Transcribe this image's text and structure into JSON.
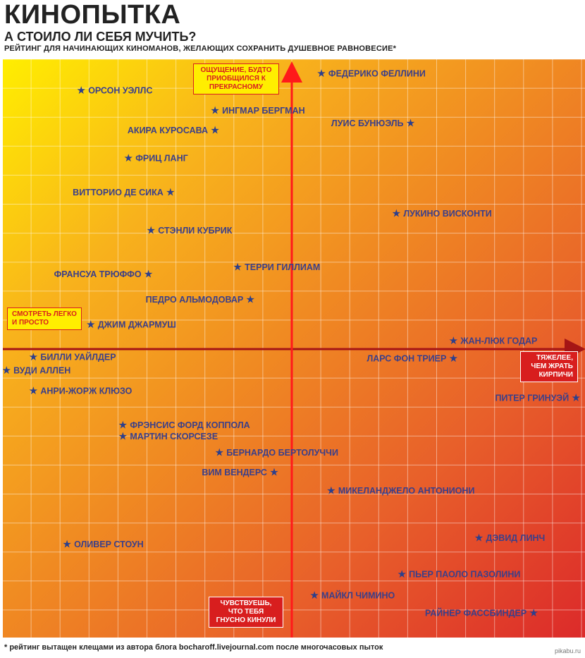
{
  "header": {
    "title": "КИНОПЫТКА",
    "subtitle": "А СТОИЛО ЛИ СЕБЯ МУЧИТЬ?",
    "description": "РЕЙТИНГ ДЛЯ НАЧИНАЮЩИХ КИНОМАНОВ, ЖЕЛАЮЩИХ СОХРАНИТЬ ДУШЕВНОЕ РАВНОВЕСИЕ*"
  },
  "footer": {
    "footnote": "* рейтинг вытащен клещами из автора блога bocharoff.livejournal.com после многочасовых пыток",
    "watermark": "pikabu.ru"
  },
  "axes": {
    "top": "ОЩУЩЕНИЕ, БУДТО ПРИОБЩИЛСЯ К ПРЕКРАСНОМУ",
    "bottom": "ЧУВСТВУЕШЬ, ЧТО ТЕБЯ ГНУСНО КИНУЛИ",
    "left": "СМОТРЕТЬ ЛЕГКО И ПРОСТО",
    "right": "ТЯЖЕЛЕЕ, ЧЕМ ЖРАТЬ КИРПИЧИ"
  },
  "colors": {
    "gradient_start": "#ffee00",
    "gradient_end": "#dc2a2a",
    "axis_x": "#a51515",
    "axis_y": "#ff1a1a",
    "label": "#3a3f8a",
    "star": "#2c3f8c"
  },
  "chart_data": {
    "type": "scatter",
    "xlim": [
      -10,
      10
    ],
    "ylim": [
      -10,
      10
    ],
    "grid": true,
    "points": [
      {
        "name": "ФЕДЕРИКО ФЕЛЛИНИ",
        "x": 1.02,
        "y": 9.51,
        "side": "right"
      },
      {
        "name": "ОРСОН УЭЛЛС",
        "x": -7.27,
        "y": 8.93,
        "side": "right"
      },
      {
        "name": "ИНГМАР БЕРГМАН",
        "x": -2.65,
        "y": 8.24,
        "side": "right"
      },
      {
        "name": "ЛУИС БУНЮЭЛЬ",
        "x": 4.1,
        "y": 7.8,
        "side": "left"
      },
      {
        "name": "АКИРА КУРОСАВА",
        "x": -2.65,
        "y": 7.56,
        "side": "left"
      },
      {
        "name": "ФРИЦ ЛАНГ",
        "x": -5.64,
        "y": 6.59,
        "side": "right"
      },
      {
        "name": "ВИТТОРИО ДЕ СИКА",
        "x": -4.19,
        "y": 5.41,
        "side": "left"
      },
      {
        "name": "ЛУКИНО ВИСКОНТИ",
        "x": 3.61,
        "y": 4.68,
        "side": "right"
      },
      {
        "name": "СТЭНЛИ КУБРИК",
        "x": -4.86,
        "y": 4.1,
        "side": "right"
      },
      {
        "name": "ТЕРРИ ГИЛЛИАМ",
        "x": -1.87,
        "y": 2.83,
        "side": "right"
      },
      {
        "name": "ФРАНСУА ТРЮФФО",
        "x": -4.95,
        "y": 2.59,
        "side": "left"
      },
      {
        "name": "ПЕДРО АЛЬМОДОВАР",
        "x": -1.43,
        "y": 1.71,
        "side": "left"
      },
      {
        "name": "ДЖИМ ДЖАРМУШ",
        "x": -6.94,
        "y": 0.85,
        "side": "right"
      },
      {
        "name": "ЖАН-ЛЮК ГОДАР",
        "x": 5.58,
        "y": 0.29,
        "side": "right"
      },
      {
        "name": "БИЛЛИ УАЙЛДЕР",
        "x": -8.92,
        "y": -0.27,
        "side": "right"
      },
      {
        "name": "ЛАРС ФОН ТРИЕР",
        "x": 5.58,
        "y": -0.32,
        "side": "left"
      },
      {
        "name": "ВУДИ АЛЛЕН",
        "x": -9.85,
        "y": -0.73,
        "side": "right"
      },
      {
        "name": "АНРИ-ЖОРЖ КЛЮЗО",
        "x": -8.92,
        "y": -1.44,
        "side": "right"
      },
      {
        "name": "ПИТЕР ГРИНУЭЙ",
        "x": 9.81,
        "y": -1.68,
        "side": "left"
      },
      {
        "name": "ФРЭНСИС ФОРД КОППОЛА",
        "x": -5.83,
        "y": -2.61,
        "side": "right"
      },
      {
        "name": "МАРТИН СКОРСЕЗЕ",
        "x": -5.83,
        "y": -3.0,
        "side": "right"
      },
      {
        "name": "БЕРНАРДО БЕРТОЛУЧЧИ",
        "x": -2.5,
        "y": -3.56,
        "side": "right"
      },
      {
        "name": "ВИМ ВЕНДЕРС",
        "x": -0.61,
        "y": -4.24,
        "side": "left"
      },
      {
        "name": "МИКЕЛАНДЖЕЛО АНТОНИОНИ",
        "x": 1.36,
        "y": -4.88,
        "side": "right"
      },
      {
        "name": "ДЭВИД ЛИНЧ",
        "x": 6.46,
        "y": -6.51,
        "side": "right"
      },
      {
        "name": "ОЛИВЕР СТОУН",
        "x": -7.76,
        "y": -6.73,
        "side": "right"
      },
      {
        "name": "ПЬЕР ПАОЛО ПАЗОЛИНИ",
        "x": 3.8,
        "y": -7.76,
        "side": "right"
      },
      {
        "name": "МАЙКЛ ЧИМИНО",
        "x": 0.78,
        "y": -8.49,
        "side": "right"
      },
      {
        "name": "РАЙНЕР ФАССБИНДЕР",
        "x": 8.35,
        "y": -9.1,
        "side": "left"
      }
    ]
  }
}
